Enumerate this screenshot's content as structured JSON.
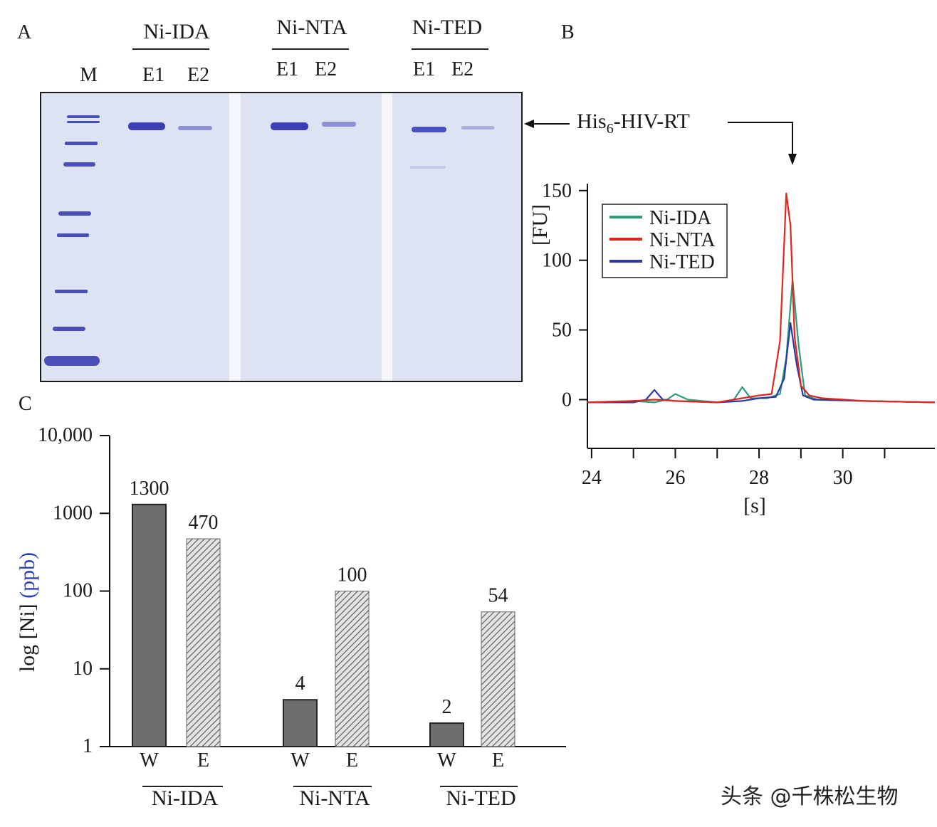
{
  "panel_a": {
    "label": "A",
    "marker_label": "M",
    "groups": [
      {
        "name": "Ni-IDA",
        "lanes": [
          "E1",
          "E2"
        ]
      },
      {
        "name": "Ni-NTA",
        "lanes": [
          "E1",
          "E2"
        ]
      },
      {
        "name": "Ni-TED",
        "lanes": [
          "E1",
          "E2"
        ]
      }
    ],
    "band_annotation": {
      "prefix": "His",
      "subscript": "6",
      "suffix": "-HIV-RT"
    },
    "gel_color": "#dde3f2",
    "band_color": "#3b3fb4"
  },
  "panel_b": {
    "label": "B",
    "ylabel": "[FU]",
    "xlabel": "[s]",
    "yticks": [
      "0",
      "50",
      "100",
      "150"
    ],
    "xticks": [
      "24",
      "26",
      "28",
      "30"
    ]
  },
  "panel_c": {
    "label": "C",
    "ylabel_main": "log [Ni]",
    "ylabel_unit": "(ppb)",
    "ylabel_unit_color": "#2b3fb8",
    "yticks": [
      "1",
      "10",
      "100",
      "1000",
      "10,000"
    ],
    "group_labels": [
      "Ni-IDA",
      "Ni-NTA",
      "Ni-TED"
    ],
    "bar_labels": [
      "W",
      "E",
      "W",
      "E",
      "W",
      "E"
    ],
    "value_labels": [
      "1300",
      "470",
      "4",
      "100",
      "2",
      "54"
    ]
  },
  "chart_data": [
    {
      "type": "line",
      "title": "",
      "xlabel": "[s]",
      "ylabel": "[FU]",
      "xlim": [
        23.9,
        32.2
      ],
      "ylim": [
        -35,
        155
      ],
      "grid": false,
      "legend": "top-left",
      "series": [
        {
          "name": "Ni-IDA",
          "color": "#2e9c7a",
          "x": [
            23.9,
            25.0,
            25.5,
            25.8,
            26.0,
            26.3,
            27.0,
            27.4,
            27.6,
            27.8,
            28.2,
            28.5,
            28.65,
            28.8,
            28.95,
            29.1,
            29.4,
            30.5,
            32.2
          ],
          "y": [
            -2,
            -1,
            -2,
            0,
            4,
            0,
            -2,
            0,
            9,
            1,
            1,
            4,
            30,
            86,
            38,
            3,
            0,
            -1,
            -2
          ]
        },
        {
          "name": "Ni-NTA",
          "color": "#e0261f",
          "x": [
            23.9,
            25.0,
            25.5,
            26.0,
            27.0,
            27.6,
            28.0,
            28.3,
            28.5,
            28.65,
            28.75,
            28.85,
            29.0,
            29.2,
            29.5,
            30.5,
            32.2
          ],
          "y": [
            -2,
            -1,
            0,
            -1,
            -2,
            1,
            3,
            4,
            42,
            148,
            125,
            45,
            10,
            3,
            1,
            -1,
            -2
          ]
        },
        {
          "name": "Ni-TED",
          "color": "#2c38a8",
          "x": [
            23.9,
            25.0,
            25.3,
            25.5,
            25.7,
            26.0,
            27.0,
            27.6,
            28.0,
            28.4,
            28.6,
            28.75,
            28.9,
            29.05,
            29.3,
            30.5,
            32.2
          ],
          "y": [
            -2,
            -2,
            0,
            7,
            0,
            -1,
            -2,
            -1,
            1,
            2,
            15,
            55,
            25,
            3,
            0,
            -1,
            -2
          ]
        }
      ]
    },
    {
      "type": "bar",
      "title": "",
      "xlabel": "",
      "ylabel": "log [Ni] (ppb)",
      "scale": "log",
      "ylim": [
        1,
        10000
      ],
      "grid": false,
      "categories": [
        "Ni-IDA W",
        "Ni-IDA E",
        "Ni-NTA W",
        "Ni-NTA E",
        "Ni-TED W",
        "Ni-TED E"
      ],
      "values": [
        1300,
        470,
        4,
        100,
        2,
        54
      ],
      "styles": [
        "solid",
        "hatched",
        "solid",
        "hatched",
        "solid",
        "hatched"
      ]
    }
  ]
}
